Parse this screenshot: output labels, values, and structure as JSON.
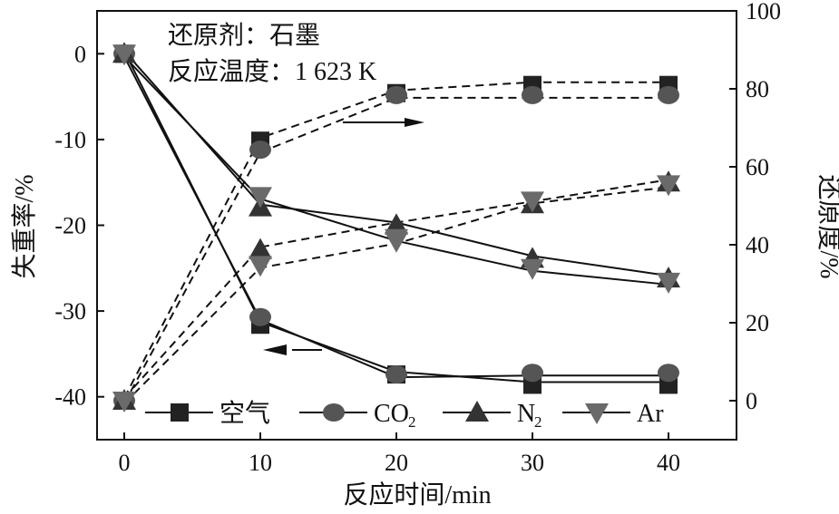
{
  "chart_data": {
    "type": "line",
    "xlabel": "反应时间/min",
    "ylabel_left": "失重率/%",
    "ylabel_right": "还原度/%",
    "x": [
      0,
      10,
      20,
      30,
      40
    ],
    "xlim": [
      -2,
      45
    ],
    "ylim_left": [
      -45,
      5
    ],
    "ylim_right": [
      -10,
      100
    ],
    "xticks": [
      0,
      10,
      20,
      30,
      40
    ],
    "yticks_left": [
      0,
      -10,
      -20,
      -30,
      -40
    ],
    "yticks_right": [
      0,
      20,
      40,
      60,
      80,
      100
    ],
    "grid": false,
    "annotations": [
      "还原剂：石墨",
      "反应温度：1 623 K"
    ],
    "legend_position": "bottom",
    "series": [
      {
        "name": "空气",
        "name_sub": "",
        "marker": "square",
        "color": "#222222",
        "weight_loss": [
          0,
          -31.6,
          -37.4,
          -38.6,
          -38.6
        ],
        "reduction_degree": [
          0,
          66.7,
          78.9,
          81,
          81
        ]
      },
      {
        "name": "CO",
        "name_sub": "2",
        "marker": "circle",
        "color": "#555555",
        "weight_loss": [
          0,
          -30.7,
          -37.4,
          -37.2,
          -37.2
        ],
        "reduction_degree": [
          0,
          64.4,
          78.4,
          78.4,
          78.4
        ]
      },
      {
        "name": "N",
        "name_sub": "2",
        "marker": "triangle-up",
        "color": "#333333",
        "weight_loss": [
          0,
          -17.9,
          -20,
          -23.9,
          -26.2
        ],
        "reduction_degree": [
          0,
          38.7,
          45,
          50.4,
          56
        ]
      },
      {
        "name": "Ar",
        "name_sub": "",
        "marker": "triangle-down",
        "color": "#6a6a6a",
        "weight_loss": [
          0,
          -16.6,
          -21.5,
          -25,
          -26.6
        ],
        "reduction_degree": [
          0,
          34.8,
          41,
          51.3,
          55.5
        ]
      }
    ]
  }
}
